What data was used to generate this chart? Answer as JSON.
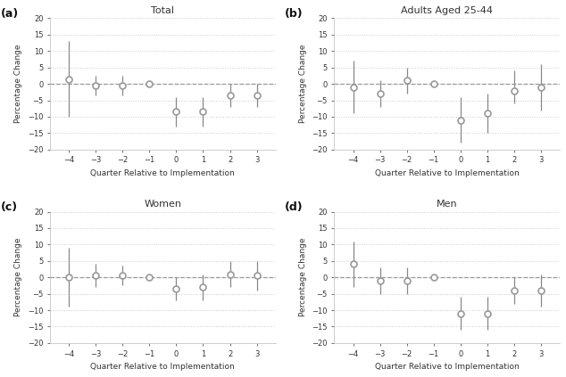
{
  "panels": [
    {
      "label": "(a)",
      "title": "Total",
      "quarters": [
        -4,
        -3,
        -2,
        -1,
        0,
        1,
        2,
        3
      ],
      "means": [
        1.5,
        -0.5,
        -0.5,
        0,
        -8.5,
        -8.5,
        -3.5,
        -3.5
      ],
      "ci_low": [
        -10,
        -3.5,
        -3.5,
        0,
        -13,
        -13,
        -7,
        -7
      ],
      "ci_high": [
        13,
        2.5,
        2.5,
        0,
        -4,
        -4,
        0,
        0
      ]
    },
    {
      "label": "(b)",
      "title": "Adults Aged 25-44",
      "quarters": [
        -4,
        -3,
        -2,
        -1,
        0,
        1,
        2,
        3
      ],
      "means": [
        -1,
        -3,
        1,
        0,
        -11,
        -9,
        -2,
        -1
      ],
      "ci_low": [
        -9,
        -7,
        -3,
        0,
        -18,
        -15,
        -6,
        -8
      ],
      "ci_high": [
        7,
        1,
        5,
        0,
        -4,
        -3,
        4,
        6
      ]
    },
    {
      "label": "(c)",
      "title": "Women",
      "quarters": [
        -4,
        -3,
        -2,
        -1,
        0,
        1,
        2,
        3
      ],
      "means": [
        0,
        0.5,
        0.5,
        0,
        -3.5,
        -3,
        1,
        0.5
      ],
      "ci_low": [
        -9,
        -3,
        -2.5,
        0,
        -7,
        -7,
        -3,
        -4
      ],
      "ci_high": [
        9,
        4,
        3.5,
        0,
        0,
        1,
        5,
        5
      ]
    },
    {
      "label": "(d)",
      "title": "Men",
      "quarters": [
        -4,
        -3,
        -2,
        -1,
        0,
        1,
        2,
        3
      ],
      "means": [
        4,
        -1,
        -1,
        0,
        -11,
        -11,
        -4,
        -4
      ],
      "ci_low": [
        -3,
        -5,
        -5,
        0,
        -16,
        -16,
        -8,
        -9
      ],
      "ci_high": [
        11,
        3,
        3,
        0,
        -6,
        -6,
        0,
        1
      ]
    }
  ],
  "ylim": [
    -20,
    20
  ],
  "yticks": [
    -20,
    -15,
    -10,
    -5,
    0,
    5,
    10,
    15,
    20
  ],
  "xticks": [
    -4,
    -3,
    -2,
    -1,
    0,
    1,
    2,
    3
  ],
  "xlabel": "Quarter Relative to Implementation",
  "ylabel": "Percentage Change",
  "marker_facecolor": "white",
  "marker_edgecolor": "#999999",
  "line_color": "#888888",
  "dashed_color": "#999999",
  "grid_color": "#cccccc",
  "bg_color": "#ffffff",
  "panel_bg": "#ffffff",
  "text_color": "#333333",
  "label_fontsize": 9,
  "title_fontsize": 8,
  "tick_fontsize": 6,
  "axis_label_fontsize": 6.5,
  "marker_size": 5,
  "linewidth": 0.9
}
